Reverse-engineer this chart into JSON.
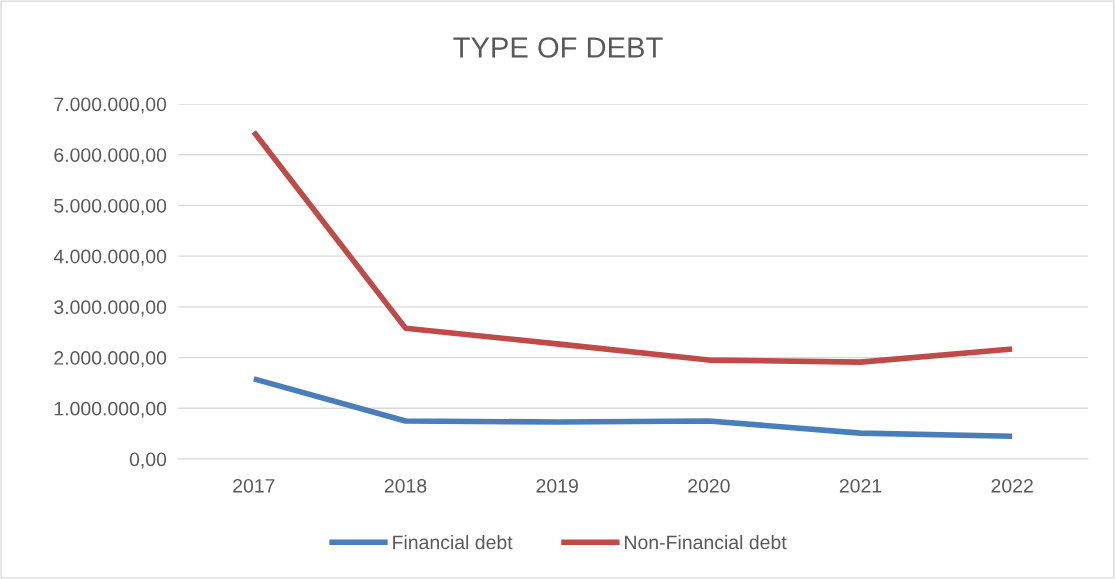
{
  "chart_data": {
    "type": "line",
    "title": "TYPE OF DEBT",
    "categories": [
      "2017",
      "2018",
      "2019",
      "2020",
      "2021",
      "2022"
    ],
    "series": [
      {
        "name": "Financial debt",
        "color": "#4a7ebb",
        "values": [
          1580000,
          750000,
          730000,
          750000,
          510000,
          450000
        ]
      },
      {
        "name": "Non-Financial debt",
        "color": "#be4b48",
        "values": [
          6450000,
          2580000,
          2270000,
          1950000,
          1910000,
          2170000
        ]
      }
    ],
    "ylim": [
      0,
      7000000
    ],
    "yticks": [
      {
        "value": 0,
        "label": "0,00"
      },
      {
        "value": 1000000,
        "label": "1.000.000,00"
      },
      {
        "value": 2000000,
        "label": "2.000.000,00"
      },
      {
        "value": 3000000,
        "label": "3.000.000,00"
      },
      {
        "value": 4000000,
        "label": "4.000.000,00"
      },
      {
        "value": 5000000,
        "label": "5.000.000,00"
      },
      {
        "value": 6000000,
        "label": "6.000.000,00"
      },
      {
        "value": 7000000,
        "label": "7.000.000,00"
      }
    ],
    "grid": "y",
    "legend": "bottom",
    "marker": "none",
    "line_style": "solid"
  }
}
